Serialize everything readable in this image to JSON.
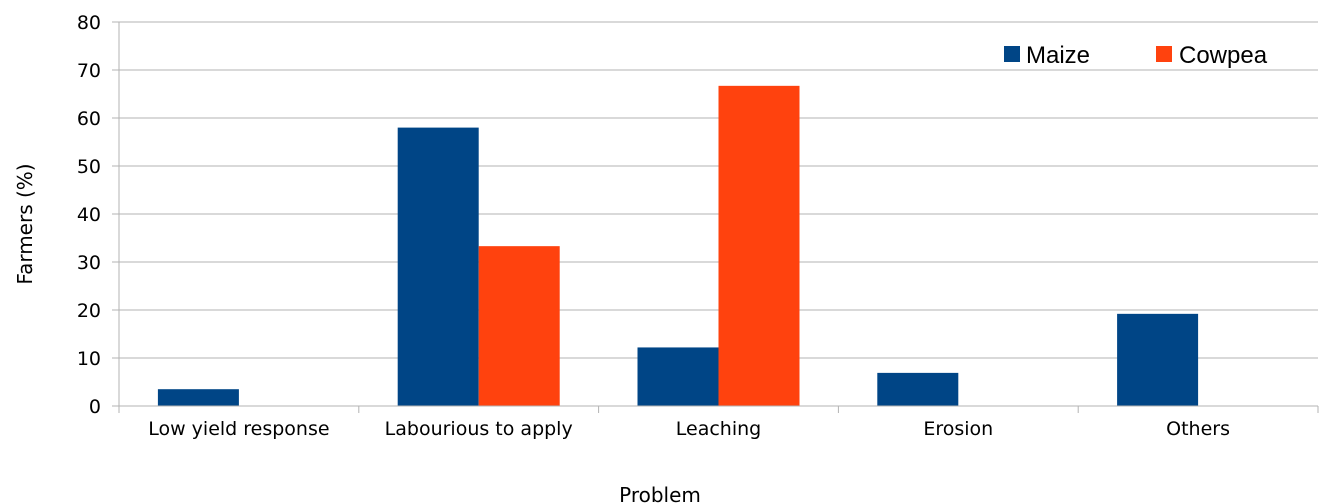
{
  "colors": {
    "maize": "#004586",
    "cowpea": "#ff420e",
    "grid": "#b3b3b3",
    "axis": "#b3b3b3"
  },
  "chart_data": {
    "type": "bar",
    "categories": [
      "Low yield response",
      "Labourious to apply",
      "Leaching",
      "Erosion",
      "Others"
    ],
    "series": [
      {
        "name": "Maize",
        "values": [
          3.5,
          58,
          12.2,
          6.9,
          19.2
        ]
      },
      {
        "name": "Cowpea",
        "values": [
          0,
          33.3,
          66.7,
          0,
          0
        ]
      }
    ],
    "xlabel": "Problem",
    "ylabel": "Farmers (%)",
    "ylim": [
      0,
      80
    ],
    "yticks": [
      "0",
      "10",
      "20",
      "30",
      "40",
      "50",
      "60",
      "70",
      "80"
    ],
    "grid": true,
    "legend_position": "top-right"
  }
}
